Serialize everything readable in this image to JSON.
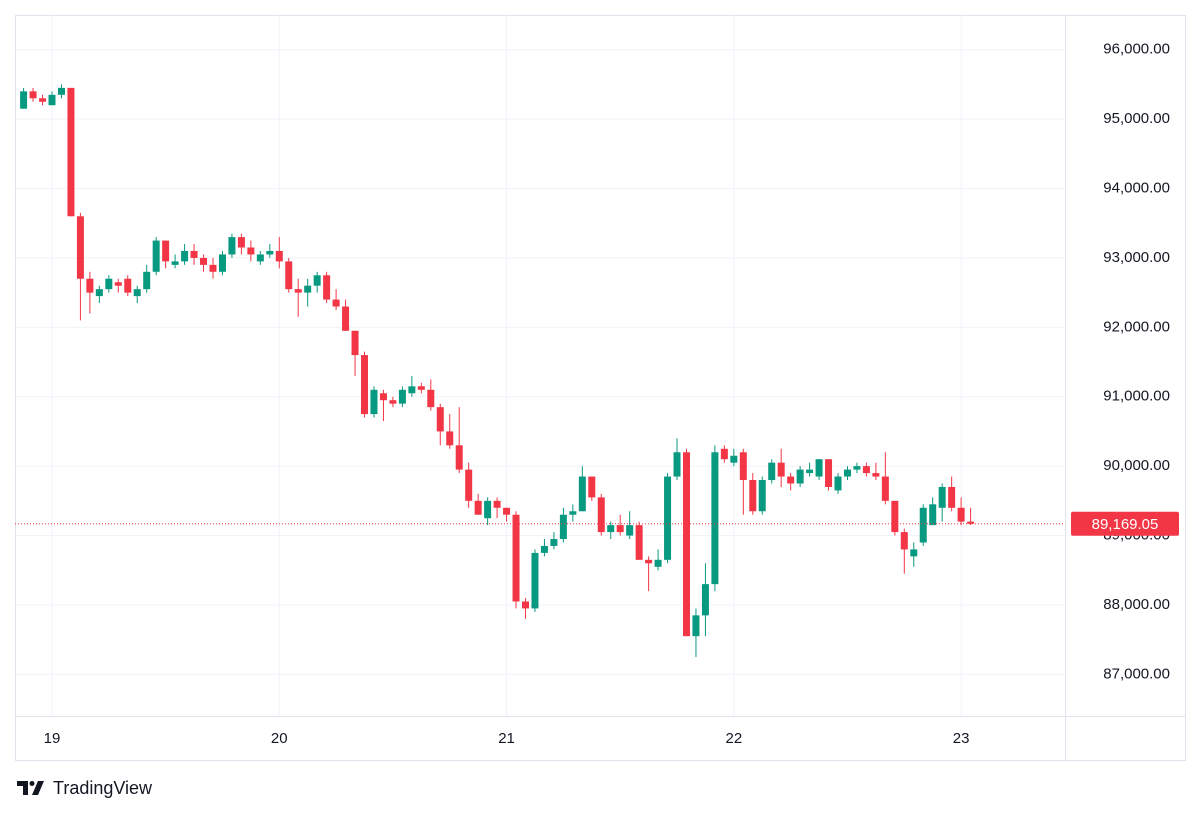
{
  "chart_data": {
    "type": "candlestick",
    "categories": [
      null,
      null,
      null,
      "19",
      null,
      null,
      null,
      null,
      null,
      null,
      null,
      null,
      null,
      null,
      null,
      null,
      null,
      null,
      null,
      null,
      null,
      null,
      null,
      null,
      null,
      null,
      null,
      "20",
      null,
      null,
      null,
      null,
      null,
      null,
      null,
      null,
      null,
      null,
      null,
      null,
      null,
      null,
      null,
      null,
      null,
      null,
      null,
      null,
      null,
      null,
      null,
      "21",
      null,
      null,
      null,
      null,
      null,
      null,
      null,
      null,
      null,
      null,
      null,
      null,
      null,
      null,
      null,
      null,
      null,
      null,
      null,
      null,
      null,
      null,
      null,
      "22",
      null,
      null,
      null,
      null,
      null,
      null,
      null,
      null,
      null,
      null,
      null,
      null,
      null,
      null,
      null,
      null,
      null,
      null,
      null,
      null,
      null,
      null,
      null,
      "23",
      null
    ],
    "open": [
      95150,
      95400,
      95300,
      95200,
      95350,
      95450,
      93600,
      92700,
      92450,
      92550,
      92650,
      92700,
      92450,
      92550,
      92800,
      93250,
      92900,
      92950,
      93100,
      93000,
      92900,
      92800,
      93050,
      93300,
      93150,
      92950,
      93050,
      93100,
      92950,
      92550,
      92500,
      92600,
      92750,
      92400,
      92300,
      91950,
      91600,
      90750,
      91050,
      90950,
      90900,
      91050,
      91150,
      91100,
      90850,
      90500,
      90300,
      89950,
      89500,
      89250,
      89500,
      89400,
      89300,
      88050,
      87950,
      88750,
      88850,
      88950,
      89300,
      89350,
      89850,
      89550,
      89050,
      89150,
      89000,
      89150,
      88650,
      88550,
      88650,
      89850,
      90200,
      87550,
      87850,
      88300,
      90250,
      90050,
      90200,
      89800,
      89350,
      89800,
      90050,
      89850,
      89750,
      89900,
      89850,
      90100,
      89650,
      89850,
      89950,
      90000,
      89900,
      89850,
      89500,
      89050,
      88700,
      88900,
      89150,
      89400,
      89700,
      89400,
      89200
    ],
    "high": [
      95450,
      95450,
      95350,
      95400,
      95500,
      95450,
      93650,
      92800,
      92600,
      92750,
      92700,
      92750,
      92600,
      92900,
      93300,
      93250,
      93050,
      93200,
      93200,
      93050,
      93000,
      93100,
      93350,
      93350,
      93250,
      93100,
      93200,
      93300,
      93000,
      92700,
      92700,
      92800,
      92800,
      92550,
      92400,
      91950,
      91650,
      91150,
      91100,
      91000,
      91150,
      91300,
      91200,
      91250,
      90900,
      90750,
      90850,
      90050,
      89600,
      89550,
      89550,
      89400,
      89350,
      88100,
      88800,
      88950,
      89050,
      89400,
      89450,
      90000,
      89850,
      89600,
      89200,
      89300,
      89350,
      89200,
      88700,
      88800,
      89900,
      90400,
      90250,
      87950,
      88600,
      90300,
      90300,
      90250,
      90250,
      89900,
      89850,
      90100,
      90250,
      89900,
      90000,
      90050,
      90100,
      90100,
      89900,
      90000,
      90050,
      90050,
      90050,
      90200,
      89500,
      89100,
      88900,
      89450,
      89550,
      89750,
      89850,
      89550,
      89400
    ],
    "low": [
      95150,
      95250,
      95200,
      95200,
      95300,
      93600,
      92100,
      92200,
      92350,
      92500,
      92500,
      92450,
      92350,
      92500,
      92750,
      92850,
      92850,
      92900,
      92900,
      92800,
      92700,
      92750,
      93000,
      93050,
      92950,
      92900,
      93000,
      92850,
      92500,
      92150,
      92300,
      92500,
      92350,
      92250,
      91950,
      91300,
      90700,
      90700,
      90650,
      90850,
      90850,
      91000,
      91050,
      90800,
      90300,
      90250,
      89900,
      89400,
      89300,
      89150,
      89250,
      89200,
      87950,
      87800,
      87900,
      88700,
      88800,
      88900,
      89200,
      89350,
      89500,
      89000,
      88950,
      89000,
      88950,
      88650,
      88200,
      88500,
      88600,
      89800,
      87550,
      87250,
      87550,
      88200,
      90050,
      90000,
      89300,
      89300,
      89300,
      89750,
      89700,
      89650,
      89700,
      89850,
      89800,
      89650,
      89600,
      89800,
      89900,
      89850,
      89800,
      89450,
      89000,
      88450,
      88550,
      88850,
      89150,
      89200,
      89350,
      89150,
      89150
    ],
    "close": [
      95400,
      95300,
      95250,
      95350,
      95450,
      93600,
      92700,
      92500,
      92550,
      92700,
      92600,
      92500,
      92550,
      92800,
      93250,
      92950,
      92950,
      93100,
      93000,
      92900,
      92800,
      93050,
      93300,
      93150,
      93050,
      93050,
      93100,
      92950,
      92550,
      92500,
      92600,
      92750,
      92400,
      92300,
      91950,
      91600,
      90750,
      91100,
      90950,
      90900,
      91100,
      91150,
      91100,
      90850,
      90500,
      90300,
      89950,
      89500,
      89300,
      89500,
      89400,
      89300,
      88050,
      87950,
      88750,
      88850,
      88950,
      89300,
      89350,
      89850,
      89550,
      89050,
      89150,
      89050,
      89150,
      88650,
      88600,
      88650,
      89850,
      90200,
      87550,
      87850,
      88300,
      90200,
      90100,
      90150,
      89800,
      89350,
      89800,
      90050,
      89850,
      89750,
      89950,
      89950,
      90100,
      89700,
      89850,
      89950,
      90000,
      89900,
      89850,
      89500,
      89050,
      88800,
      88800,
      89400,
      89450,
      89700,
      89400,
      89200,
      89169.05
    ],
    "up_color": "#089981",
    "down_color": "#f23645",
    "ylim": [
      86400,
      96500
    ],
    "yticks": [
      {
        "value": 87000,
        "label": "87,000.00"
      },
      {
        "value": 88000,
        "label": "88,000.00"
      },
      {
        "value": 89000,
        "label": "89,000.00"
      },
      {
        "value": 90000,
        "label": "90,000.00"
      },
      {
        "value": 91000,
        "label": "91,000.00"
      },
      {
        "value": 92000,
        "label": "92,000.00"
      },
      {
        "value": 93000,
        "label": "93,000.00"
      },
      {
        "value": 94000,
        "label": "94,000.00"
      },
      {
        "value": 95000,
        "label": "95,000.00"
      },
      {
        "value": 96000,
        "label": "96,000.00"
      }
    ],
    "grid": true,
    "last_price": {
      "value": 89169.05,
      "label": "89,169.05"
    }
  },
  "branding": "TradingView"
}
